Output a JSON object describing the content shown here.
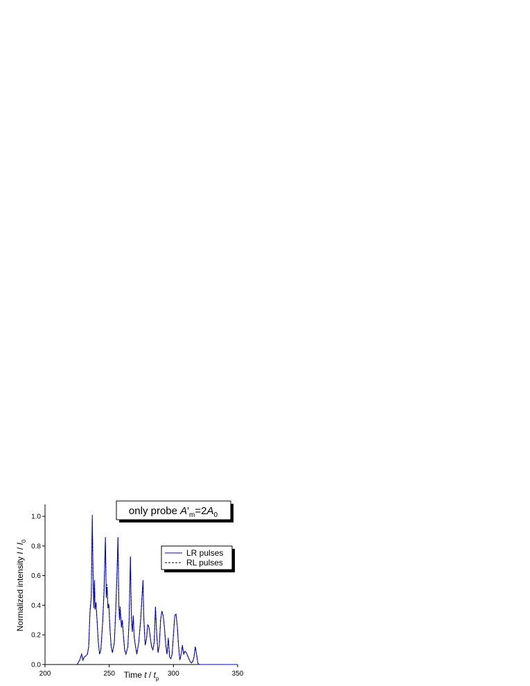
{
  "chart_data": {
    "type": "line",
    "annotation": [
      "only probe ",
      "A",
      "'",
      "m",
      "=2",
      "A",
      "0"
    ],
    "xlabel": [
      "Time ",
      "t",
      " / ",
      "t",
      "p"
    ],
    "ylabel": [
      "Normalized intensity ",
      "I",
      " / ",
      "I",
      "0"
    ],
    "x": [
      225,
      227,
      228.5,
      229.5,
      230.5,
      232,
      233,
      234,
      235,
      236,
      236.8,
      237.5,
      238,
      238.5,
      239,
      239.7,
      240.5,
      241.5,
      242.5,
      243.5,
      245,
      246,
      247,
      247.7,
      248.3,
      249,
      249.7,
      250.5,
      251.5,
      252.5,
      254,
      255,
      256,
      256.8,
      257.5,
      258,
      258.5,
      259.5,
      260.2,
      261,
      262,
      263,
      264.5,
      265.5,
      266.5,
      267.3,
      268,
      268.7,
      269.5,
      270.5,
      271.5,
      273,
      274.5,
      275.5,
      276.3,
      277,
      278,
      279,
      280,
      281,
      282,
      283,
      284,
      285,
      286,
      287,
      288,
      289,
      290,
      291,
      292,
      293,
      294,
      295,
      296,
      297,
      298,
      299,
      300,
      301,
      302,
      303,
      304,
      305,
      306,
      307,
      308,
      309,
      310,
      311,
      312,
      313,
      314,
      315,
      316,
      317,
      318,
      319,
      320,
      350
    ],
    "series": [
      {
        "name": "LR pulses",
        "color": "#0000cc",
        "dash": false,
        "values": [
          0,
          0.03,
          0.07,
          0.03,
          0.05,
          0.06,
          0.07,
          0.12,
          0.35,
          0.45,
          1.01,
          0.55,
          0.38,
          0.57,
          0.37,
          0.42,
          0.3,
          0.15,
          0.07,
          0.1,
          0.3,
          0.5,
          0.86,
          0.45,
          0.52,
          0.38,
          0.4,
          0.25,
          0.12,
          0.08,
          0.15,
          0.35,
          0.6,
          0.86,
          0.4,
          0.3,
          0.38,
          0.25,
          0.3,
          0.2,
          0.1,
          0.07,
          0.12,
          0.3,
          0.73,
          0.3,
          0.22,
          0.33,
          0.18,
          0.12,
          0.07,
          0.15,
          0.3,
          0.45,
          0.57,
          0.3,
          0.13,
          0.17,
          0.27,
          0.25,
          0.18,
          0.12,
          0.1,
          0.15,
          0.39,
          0.2,
          0.08,
          0.13,
          0.3,
          0.36,
          0.33,
          0.25,
          0.13,
          0.07,
          0.18,
          0.05,
          0.04,
          0.07,
          0.2,
          0.33,
          0.34,
          0.26,
          0.12,
          0.03,
          0.07,
          0.13,
          0.07,
          0.09,
          0.08,
          0.06,
          0.04,
          0.02,
          0.01,
          0.02,
          0.05,
          0.12,
          0.07,
          0.01,
          0,
          0
        ]
      },
      {
        "name": "RL pulses",
        "color": "#000000",
        "dash": true,
        "values": [
          0,
          0.03,
          0.07,
          0.03,
          0.05,
          0.06,
          0.07,
          0.12,
          0.36,
          0.46,
          0.98,
          0.57,
          0.4,
          0.55,
          0.38,
          0.41,
          0.3,
          0.15,
          0.07,
          0.1,
          0.31,
          0.52,
          0.85,
          0.47,
          0.54,
          0.38,
          0.41,
          0.25,
          0.12,
          0.08,
          0.15,
          0.36,
          0.61,
          0.85,
          0.41,
          0.3,
          0.39,
          0.25,
          0.3,
          0.2,
          0.1,
          0.07,
          0.12,
          0.31,
          0.72,
          0.31,
          0.22,
          0.33,
          0.18,
          0.12,
          0.07,
          0.15,
          0.31,
          0.46,
          0.56,
          0.3,
          0.13,
          0.17,
          0.27,
          0.25,
          0.18,
          0.12,
          0.1,
          0.15,
          0.39,
          0.2,
          0.08,
          0.13,
          0.3,
          0.36,
          0.33,
          0.25,
          0.13,
          0.07,
          0.18,
          0.05,
          0.04,
          0.07,
          0.2,
          0.33,
          0.34,
          0.26,
          0.12,
          0.03,
          0.07,
          0.13,
          0.07,
          0.09,
          0.08,
          0.06,
          0.04,
          0.02,
          0.01,
          0.02,
          0.05,
          0.12,
          0.07,
          0.01,
          0,
          0
        ]
      }
    ],
    "xlim": [
      200,
      350
    ],
    "xticks": [
      200,
      250,
      300,
      350
    ],
    "ylim": [
      0,
      1.08
    ],
    "yticks": [
      {
        "value": 0,
        "label": "0.0"
      },
      0.2,
      0.4,
      0.6,
      0.8,
      {
        "value": 1,
        "label": "1.0"
      }
    ],
    "legend": "upper-right"
  }
}
